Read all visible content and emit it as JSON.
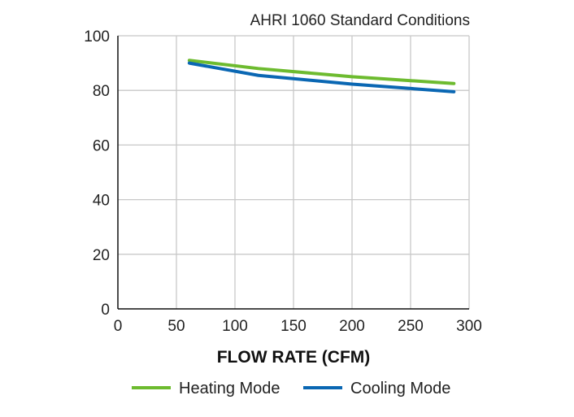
{
  "chart_data": {
    "type": "line",
    "title": "AHRI 1060 Standard Conditions",
    "xlabel": "FLOW RATE (CFM)",
    "ylabel": "",
    "xlim": [
      0,
      300
    ],
    "ylim": [
      0,
      100
    ],
    "xticks": [
      0,
      50,
      100,
      150,
      200,
      250,
      300
    ],
    "yticks": [
      0,
      20,
      40,
      60,
      80,
      100
    ],
    "grid": true,
    "legend_position": "bottom",
    "series": [
      {
        "name": "Heating Mode",
        "color": "#6dbb2f",
        "x": [
          61,
          120,
          200,
          287
        ],
        "y": [
          91,
          88,
          85,
          82.5
        ]
      },
      {
        "name": "Cooling Mode",
        "color": "#0a67b3",
        "x": [
          61,
          120,
          200,
          287
        ],
        "y": [
          90,
          85.5,
          82.3,
          79.5
        ]
      }
    ]
  }
}
